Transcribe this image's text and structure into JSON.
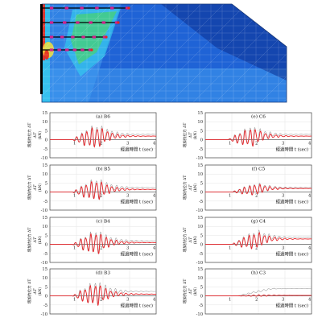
{
  "contour_figure": {
    "colors": {
      "deep": "#0b2f8f",
      "base": "#1f63d6",
      "light": "#3f9cf0",
      "cyan": "#35d4f0",
      "green": "#4fdc4a",
      "yellow": "#f2e23a",
      "red": "#e8261c",
      "black": "#000000"
    }
  },
  "charts": {
    "x_label": "經過時間 t (sec)",
    "y_label_rotated": "增加抗拉力 ΔT",
    "y_unit": "(kN)",
    "y_delta": "ΔT",
    "xlim": [
      0,
      4
    ],
    "ylim": [
      -10,
      15
    ],
    "yticks": [
      -10,
      -5,
      0,
      5,
      10,
      15
    ],
    "xtick_labels": [
      "1",
      "2",
      "3",
      "4"
    ],
    "grid": true,
    "colors": {
      "red": "#e8262b",
      "gray": "#9a9a9a",
      "axis": "#444444",
      "grid": "#e4e4e4"
    }
  },
  "chart_data": [
    {
      "type": "line",
      "panel": "(a) B6",
      "amp": 6.0,
      "residual_red": 2.0,
      "residual_gray": 3.0,
      "onset": 0.85
    },
    {
      "type": "line",
      "panel": "(b) B5",
      "amp": 5.5,
      "residual_red": 1.5,
      "residual_gray": 2.5,
      "onset": 0.85
    },
    {
      "type": "line",
      "panel": "(c) B4",
      "amp": 6.0,
      "residual_red": 1.0,
      "residual_gray": 2.0,
      "onset": 0.85
    },
    {
      "type": "line",
      "panel": "(d) B3",
      "amp": 6.0,
      "residual_red": 1.0,
      "residual_gray": 2.5,
      "onset": 0.85
    },
    {
      "type": "line",
      "panel": "(e) C6",
      "amp": 5.0,
      "residual_red": 2.0,
      "residual_gray": 3.0,
      "onset": 0.85
    },
    {
      "type": "line",
      "panel": "(f) C5",
      "amp": 3.0,
      "residual_red": 2.0,
      "residual_gray": 2.5,
      "onset": 1.0
    },
    {
      "type": "line",
      "panel": "(g) C4",
      "amp": 4.5,
      "residual_red": 3.0,
      "residual_gray": 4.0,
      "onset": 1.0
    },
    {
      "type": "line",
      "panel": "(h) C3",
      "amp": 0.5,
      "residual_red": 0.3,
      "residual_gray": 4.0,
      "onset": 1.2
    }
  ]
}
